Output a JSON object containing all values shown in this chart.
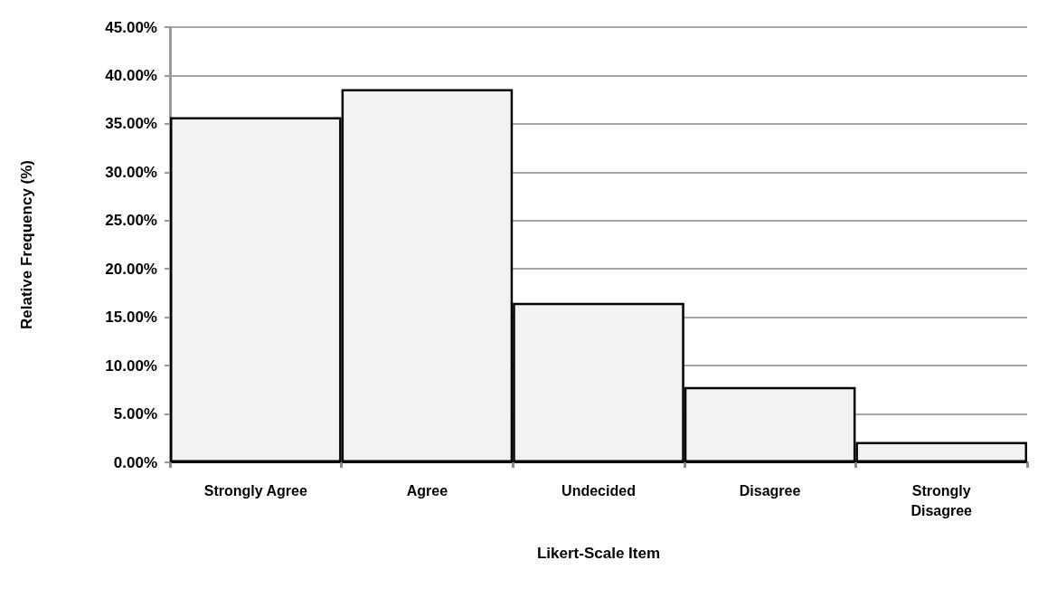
{
  "chart_data": {
    "type": "bar",
    "xlabel": "Likert-Scale Item",
    "ylabel": "Relative Frequency (%)",
    "categories": [
      "Strongly Agree",
      "Agree",
      "Undecided",
      "Disagree",
      "Strongly\nDisagree"
    ],
    "values": [
      35.7,
      38.6,
      16.5,
      7.8,
      2.1
    ],
    "color": "#f2f2f2",
    "ylim": [
      0,
      45
    ],
    "yticks": [
      {
        "value": 0,
        "label": "0.00%"
      },
      {
        "value": 5,
        "label": "5.00%"
      },
      {
        "value": 10,
        "label": "10.00%"
      },
      {
        "value": 15,
        "label": "15.00%"
      },
      {
        "value": 20,
        "label": "20.00%"
      },
      {
        "value": 25,
        "label": "25.00%"
      },
      {
        "value": 30,
        "label": "30.00%"
      },
      {
        "value": 35,
        "label": "35.00%"
      },
      {
        "value": 40,
        "label": "40.00%"
      },
      {
        "value": 45,
        "label": "45.00%"
      }
    ],
    "grid": "y"
  }
}
